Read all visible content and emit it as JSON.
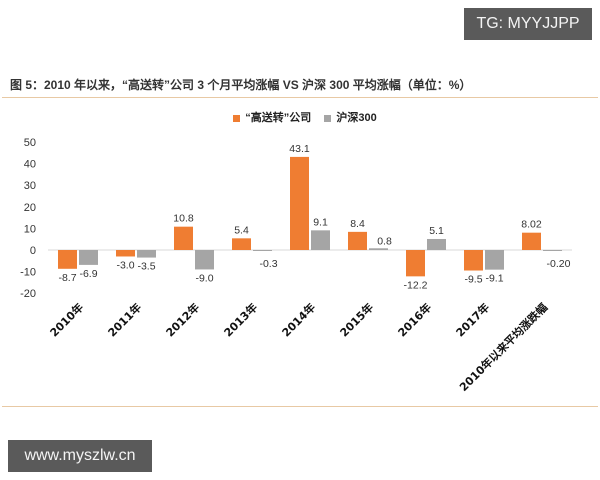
{
  "watermarks": {
    "top_right": "TG: MYYJJPP",
    "bottom_left": "www.myszlw.cn"
  },
  "figure": {
    "title": "图 5：2010 年以来，“高送转”公司 3 个月平均涨幅 VS 沪深 300 平均涨幅（单位：%）"
  },
  "colors": {
    "series_1": "#ef7d32",
    "series_2": "#a5a5a5",
    "rule": "#e8c9a4",
    "zero_line": "#d9d9d9"
  },
  "chart_data": {
    "type": "bar",
    "title": "2010 年以来，“高送转”公司 3 个月平均涨幅 VS 沪深 300 平均涨幅（单位：%）",
    "xlabel": "",
    "ylabel": "",
    "ylim": [
      -20,
      50
    ],
    "yticks": [
      50,
      40,
      30,
      20,
      10,
      0,
      -10,
      -20
    ],
    "grid": false,
    "legend_position": "top",
    "categories": [
      "2010年",
      "2011年",
      "2012年",
      "2013年",
      "2014年",
      "2015年",
      "2016年",
      "2017年",
      "2010年以来平均涨跌幅"
    ],
    "series": [
      {
        "name": "“高送转”公司",
        "color": "#ef7d32",
        "values": [
          -8.7,
          -3.0,
          10.8,
          5.4,
          43.1,
          8.4,
          -12.2,
          -9.5,
          8.02
        ],
        "labels": [
          "-8.7",
          "-3.0",
          "10.8",
          "5.4",
          "43.1",
          "8.4",
          "-12.2",
          "-9.5",
          "8.02"
        ]
      },
      {
        "name": "沪深300",
        "color": "#a5a5a5",
        "values": [
          -6.9,
          -3.5,
          -9.0,
          -0.3,
          9.1,
          0.8,
          5.1,
          -9.1,
          -0.2
        ],
        "labels": [
          "-6.9",
          "-3.5",
          "-9.0",
          "-0.3",
          "9.1",
          "0.8",
          "5.1",
          "-9.1",
          "-0.20"
        ]
      }
    ]
  }
}
